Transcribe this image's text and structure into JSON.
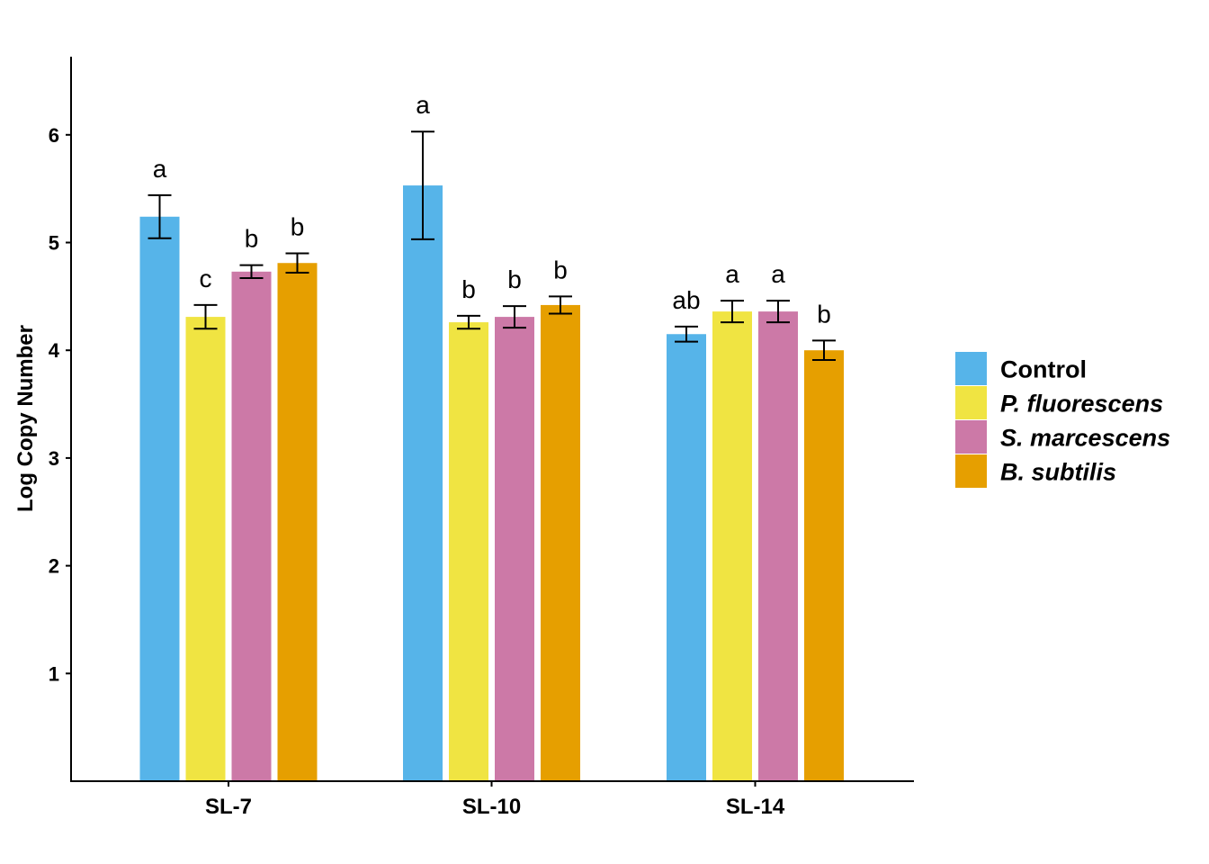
{
  "chart_data": {
    "type": "bar",
    "title": "",
    "xlabel": "",
    "ylabel": "Log Copy Number",
    "categories": [
      "SL-7",
      "SL-10",
      "SL-14"
    ],
    "ylim": [
      0,
      6.7
    ],
    "yticks": [
      1,
      2,
      3,
      4,
      5,
      6
    ],
    "grid": false,
    "legend_position": "right",
    "series": [
      {
        "name": "Control",
        "color": "#56B4E9",
        "italic": false,
        "values": [
          5.24,
          5.53,
          4.15
        ],
        "errors": [
          0.2,
          0.5,
          0.07
        ],
        "labels": [
          "a",
          "a",
          "ab"
        ]
      },
      {
        "name": "P. fluorescens",
        "color": "#F0E442",
        "italic": true,
        "values": [
          4.31,
          4.26,
          4.36
        ],
        "errors": [
          0.11,
          0.06,
          0.1
        ],
        "labels": [
          "c",
          "b",
          "a"
        ]
      },
      {
        "name": "S. marcescens",
        "color": "#CC79A7",
        "italic": true,
        "values": [
          4.73,
          4.31,
          4.36
        ],
        "errors": [
          0.06,
          0.1,
          0.1
        ],
        "labels": [
          "b",
          "b",
          "a"
        ]
      },
      {
        "name": "B. subtilis",
        "color": "#E69F00",
        "italic": true,
        "values": [
          4.81,
          4.42,
          4.0
        ],
        "errors": [
          0.09,
          0.08,
          0.09
        ],
        "labels": [
          "b",
          "b",
          "b"
        ]
      }
    ]
  }
}
